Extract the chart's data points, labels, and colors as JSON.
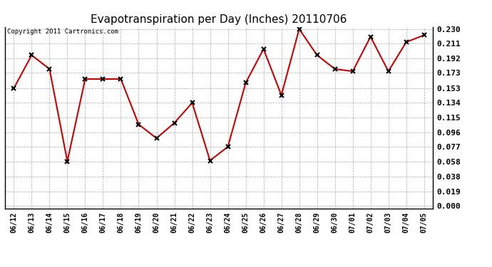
{
  "title": "Evapotranspiration per Day (Inches) 20110706",
  "copyright_text": "Copyright 2011 Cartronics.com",
  "x_labels": [
    "06/12",
    "06/13",
    "06/14",
    "06/15",
    "06/16",
    "06/17",
    "06/18",
    "06/19",
    "06/20",
    "06/21",
    "06/22",
    "06/23",
    "06/24",
    "06/25",
    "06/26",
    "06/27",
    "06/28",
    "06/29",
    "06/30",
    "07/01",
    "07/02",
    "07/03",
    "07/04",
    "07/05"
  ],
  "y_values": [
    0.153,
    0.196,
    0.178,
    0.058,
    0.165,
    0.165,
    0.165,
    0.106,
    0.088,
    0.108,
    0.134,
    0.059,
    0.077,
    0.16,
    0.204,
    0.144,
    0.23,
    0.196,
    0.178,
    0.175,
    0.22,
    0.175,
    0.213,
    0.222
  ],
  "line_color": "#cc0000",
  "marker": "x",
  "marker_size": 4,
  "marker_color": "#000000",
  "ylim": [
    0.0,
    0.23
  ],
  "yticks": [
    0.0,
    0.019,
    0.038,
    0.058,
    0.077,
    0.096,
    0.115,
    0.134,
    0.153,
    0.173,
    0.192,
    0.211,
    0.23
  ],
  "grid_color": "#aaaaaa",
  "background_color": "#ffffff",
  "title_fontsize": 11,
  "copyright_fontsize": 6.5,
  "tick_fontsize": 8,
  "xlabel_fontsize": 7
}
